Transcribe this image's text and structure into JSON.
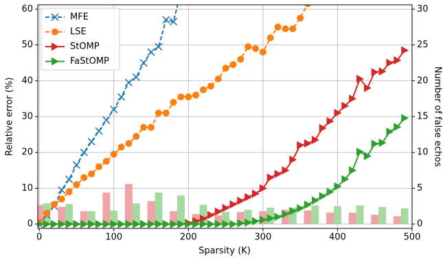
{
  "chart_data": {
    "type": "line",
    "xlabel": "Sparsity (K)",
    "ylabel": "Relative error (%)",
    "y2label": "Number of false echos",
    "xlim": [
      -2,
      500
    ],
    "xticks": [
      0,
      100,
      200,
      300,
      400,
      500
    ],
    "ylim": [
      -1.2,
      61.2
    ],
    "yticks": [
      0,
      10,
      20,
      30,
      40,
      50,
      60
    ],
    "y2lim": [
      -0.6,
      30.6
    ],
    "y2ticks": [
      0,
      5,
      10,
      15,
      20,
      25,
      30
    ],
    "grid": true,
    "legend": "upper left",
    "x": [
      0,
      10,
      20,
      30,
      40,
      50,
      60,
      70,
      80,
      90,
      100,
      110,
      120,
      130,
      140,
      150,
      160,
      170,
      180,
      190,
      200,
      210,
      220,
      230,
      240,
      250,
      260,
      270,
      280,
      290,
      300,
      310,
      320,
      330,
      340,
      350,
      360,
      370,
      380,
      390,
      400,
      410,
      420,
      430,
      440,
      450,
      460,
      470,
      480,
      490
    ],
    "series": [
      {
        "name": "MFE",
        "color": "#1f77b4",
        "marker": "x",
        "linestyle": "dashed",
        "values": [
          0,
          2.5,
          5,
          9.5,
          12.5,
          16.5,
          20,
          23,
          26,
          29,
          32,
          35.5,
          39.5,
          41,
          45,
          48,
          49.5,
          57,
          56.5,
          65,
          null,
          null,
          null,
          null,
          null,
          null,
          null,
          null,
          null,
          null,
          null,
          null,
          null,
          null,
          null,
          null,
          null,
          null,
          null,
          null,
          null,
          null,
          null,
          null,
          null,
          null,
          null,
          null,
          null,
          null
        ]
      },
      {
        "name": "LSE",
        "color": "#ff7f0e",
        "marker": "circle",
        "linestyle": "dashed",
        "values": [
          0.5,
          3,
          5.5,
          7,
          9,
          11,
          13,
          14,
          16,
          17.5,
          19.5,
          21.5,
          22.5,
          24.5,
          27,
          27,
          31,
          31,
          34,
          35.5,
          35.5,
          36,
          37.5,
          38.5,
          40.5,
          43.5,
          44.5,
          46,
          49.5,
          49,
          48,
          52,
          55,
          54.5,
          54.5,
          57.5,
          61.5,
          63,
          null,
          null,
          null,
          null,
          null,
          null,
          null,
          null,
          null,
          null,
          null,
          null
        ]
      },
      {
        "name": "StOMP",
        "color": "#d62728",
        "marker": "triangle-right",
        "linestyle": "solid",
        "values": [
          0,
          0,
          0,
          0,
          0,
          0,
          0,
          0,
          0,
          0,
          0,
          0,
          0,
          0,
          0,
          0,
          0,
          0,
          0,
          0,
          0.3,
          0.8,
          1.5,
          2.5,
          3.5,
          4.5,
          5.5,
          6.5,
          7.5,
          8.5,
          10,
          13,
          14,
          15,
          18,
          22,
          22.5,
          23.5,
          26.8,
          28.7,
          31,
          33,
          35,
          40.5,
          38,
          42.4,
          42.6,
          45,
          45.7,
          48.5
        ]
      },
      {
        "name": "FaStOMP",
        "color": "#2ca02c",
        "marker": "triangle-right",
        "linestyle": "solid",
        "values": [
          0,
          0,
          0,
          0,
          0,
          0,
          0,
          0,
          0,
          0,
          0,
          0,
          0,
          0,
          0,
          0,
          0,
          0,
          0,
          0,
          0,
          0,
          0,
          0,
          0,
          0,
          0,
          0.2,
          0.4,
          0.8,
          1.2,
          1.6,
          2,
          2.8,
          3.6,
          4.4,
          5.4,
          6.6,
          7.8,
          9,
          10.5,
          12.5,
          15,
          20.2,
          19,
          22.4,
          22.7,
          25.8,
          27.1,
          29.6
        ]
      }
    ],
    "bars": {
      "x": [
        0,
        30,
        60,
        90,
        120,
        150,
        180,
        210,
        240,
        270,
        300,
        330,
        360,
        390,
        420,
        450,
        480
      ],
      "series": [
        {
          "color": "#f0a3a4",
          "axis": "y2",
          "values": [
            2.7,
            2.4,
            1.8,
            4.4,
            5.6,
            3.2,
            1.8,
            1.4,
            1.2,
            1.7,
            1.8,
            2,
            1.9,
            1.6,
            1.6,
            1.3,
            1.1
          ]
        },
        {
          "color": "#a6d9a0",
          "axis": "y2",
          "values": [
            2.9,
            2.8,
            1.8,
            1.9,
            2.9,
            4.4,
            4,
            2.7,
            1.7,
            2,
            2.3,
            2.3,
            2.6,
            2.5,
            2.6,
            2.4,
            2.2
          ]
        }
      ]
    }
  }
}
